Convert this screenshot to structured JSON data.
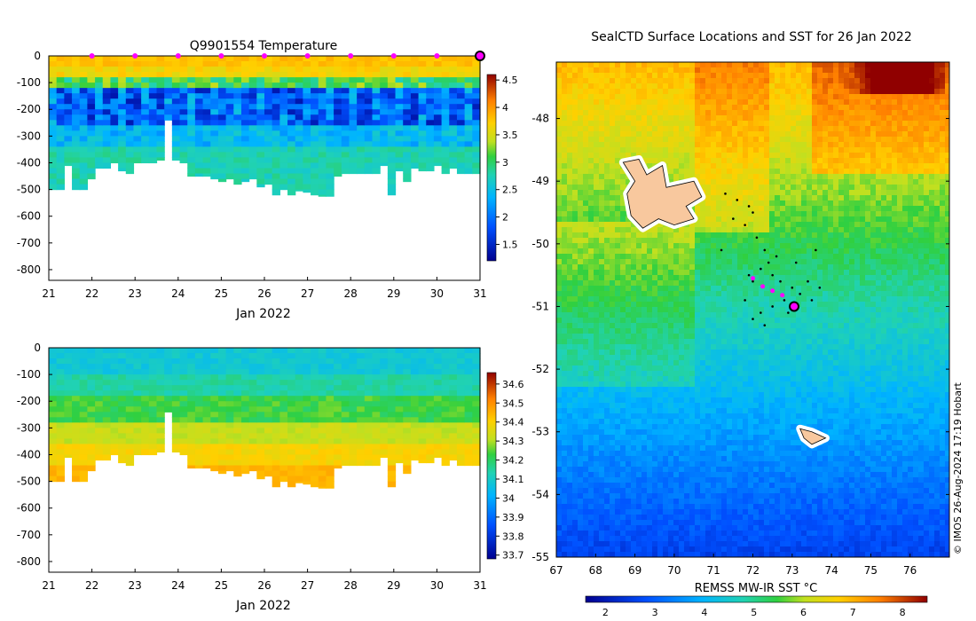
{
  "chart_data": [
    {
      "type": "heatmap",
      "title": "Q9901554  Temperature",
      "xlabel": "Jan 2022",
      "ylabel": "",
      "x_ticks": [
        "21",
        "22",
        "23",
        "24",
        "25",
        "26",
        "27",
        "28",
        "29",
        "30",
        "31"
      ],
      "xlim": [
        21,
        31
      ],
      "y_ticks": [
        "0",
        "-100",
        "-200",
        "-300",
        "-400",
        "-500",
        "-600",
        "-700",
        "-800"
      ],
      "ylim": [
        -840,
        0
      ],
      "colorbar_ticks": [
        "4.5",
        "4",
        "3.5",
        "3",
        "2.5",
        "2",
        "1.5"
      ],
      "colorbar_range": [
        1.2,
        4.6
      ],
      "marker_days": [
        22,
        23,
        24,
        25,
        26,
        27,
        28,
        29,
        30
      ],
      "current_day": 31,
      "profile_max_depths": [
        500,
        500,
        410,
        500,
        500,
        460,
        420,
        420,
        400,
        430,
        440,
        400,
        400,
        400,
        390,
        240,
        390,
        400,
        450,
        450,
        450,
        460,
        470,
        460,
        480,
        470,
        460,
        490,
        480,
        520,
        500,
        520,
        505,
        510,
        520,
        525,
        525,
        450,
        440,
        440,
        440,
        440,
        440,
        410,
        520,
        430,
        470,
        420,
        430,
        430,
        410,
        440,
        420,
        440,
        440,
        440
      ]
    },
    {
      "type": "heatmap",
      "title": "",
      "xlabel": "Jan 2022",
      "ylabel": "",
      "x_ticks": [
        "21",
        "22",
        "23",
        "24",
        "25",
        "26",
        "27",
        "28",
        "29",
        "30",
        "31"
      ],
      "xlim": [
        21,
        31
      ],
      "y_ticks": [
        "0",
        "-100",
        "-200",
        "-300",
        "-400",
        "-500",
        "-600",
        "-700",
        "-800"
      ],
      "ylim": [
        -840,
        0
      ],
      "colorbar_ticks": [
        "34.6",
        "34.5",
        "34.4",
        "34.3",
        "34.2",
        "34.1",
        "34",
        "33.9",
        "33.8",
        "33.7"
      ],
      "colorbar_range": [
        33.68,
        34.66
      ]
    },
    {
      "type": "heatmap",
      "title": "SealCTD Surface Locations and SST for 26 Jan 2022",
      "xlabel": "REMSS MW-IR SST °C",
      "x_ticks": [
        "67",
        "68",
        "69",
        "70",
        "71",
        "72",
        "73",
        "74",
        "75",
        "76"
      ],
      "xlim": [
        67,
        77
      ],
      "y_ticks": [
        "-48",
        "-49",
        "-50",
        "-51",
        "-52",
        "-53",
        "-54",
        "-55"
      ],
      "ylim": [
        -55,
        -47.1
      ],
      "colorbar_ticks": [
        "2",
        "3",
        "4",
        "5",
        "6",
        "7",
        "8"
      ],
      "colorbar_range": [
        1.6,
        8.5
      ],
      "islands": [
        "Kerguelen",
        "Heard Island"
      ],
      "track_points": [
        [
          71.3,
          -49.2
        ],
        [
          71.6,
          -49.3
        ],
        [
          71.9,
          -49.4
        ],
        [
          72.0,
          -49.5
        ],
        [
          71.8,
          -49.7
        ],
        [
          72.1,
          -49.9
        ],
        [
          72.3,
          -50.1
        ],
        [
          72.4,
          -50.3
        ],
        [
          72.2,
          -50.4
        ],
        [
          71.9,
          -50.5
        ],
        [
          72.0,
          -50.6
        ],
        [
          72.5,
          -50.5
        ],
        [
          72.7,
          -50.6
        ],
        [
          73.0,
          -50.7
        ],
        [
          73.2,
          -50.8
        ],
        [
          73.5,
          -50.9
        ],
        [
          73.7,
          -50.7
        ],
        [
          73.4,
          -50.6
        ],
        [
          72.8,
          -50.9
        ],
        [
          72.5,
          -51.0
        ],
        [
          72.2,
          -51.1
        ],
        [
          72.0,
          -51.2
        ],
        [
          72.3,
          -51.3
        ],
        [
          71.8,
          -50.9
        ],
        [
          72.6,
          -50.2
        ],
        [
          73.1,
          -50.3
        ],
        [
          73.6,
          -50.1
        ],
        [
          71.5,
          -49.6
        ],
        [
          71.2,
          -50.1
        ],
        [
          72.9,
          -51.1
        ]
      ],
      "surface_markers": [
        [
          72.0,
          -50.55
        ],
        [
          72.25,
          -50.68
        ],
        [
          72.5,
          -50.75
        ],
        [
          72.75,
          -50.82
        ]
      ],
      "current_position": [
        73.05,
        -51.0
      ],
      "credit": "© IMOS 26-Aug-2024 17:19 Hobart"
    }
  ]
}
